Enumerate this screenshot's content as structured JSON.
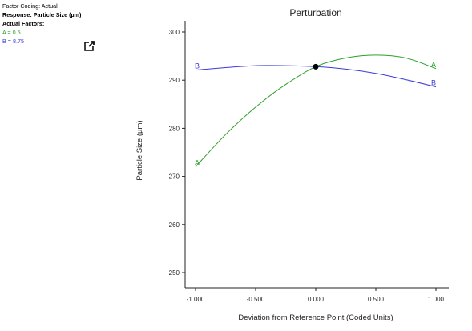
{
  "info": {
    "factor_coding": "Factor Coding: Actual",
    "response": "Response: Particle Size (µm)",
    "actual_factors": "Actual Factors:",
    "factor_a": "A = 0.5",
    "factor_b": "B = 8.75"
  },
  "icons": {
    "popout": "external-link-icon"
  },
  "colors": {
    "series_a": "#2ca02c",
    "series_b": "#3b3bd6",
    "reference_point": "#000000",
    "axis": "#222222"
  },
  "chart_data": {
    "type": "line",
    "title": "Perturbation",
    "xlabel": "Deviation from Reference Point (Coded Units)",
    "ylabel": "Particle Size (µm)",
    "xlim": [
      -1.0,
      1.0
    ],
    "ylim": [
      250,
      300
    ],
    "x_ticks": [
      "-1.000",
      "-0.500",
      "0.000",
      "0.500",
      "1.000"
    ],
    "y_ticks": [
      "250",
      "260",
      "270",
      "280",
      "290",
      "300"
    ],
    "grid": false,
    "series": [
      {
        "name": "A",
        "x": [
          -1.0,
          -0.75,
          -0.5,
          -0.25,
          0.0,
          0.25,
          0.5,
          0.75,
          1.0
        ],
        "y": [
          272.0,
          278.7,
          284.4,
          289.1,
          292.8,
          294.6,
          295.2,
          294.6,
          292.4
        ]
      },
      {
        "name": "B",
        "x": [
          -1.0,
          -0.75,
          -0.5,
          -0.25,
          0.0,
          0.25,
          0.5,
          0.75,
          1.0
        ],
        "y": [
          292.1,
          292.6,
          293.0,
          293.0,
          292.8,
          292.3,
          291.4,
          290.1,
          288.6
        ]
      }
    ],
    "reference_point": {
      "x": 0.0,
      "y": 292.8
    }
  }
}
